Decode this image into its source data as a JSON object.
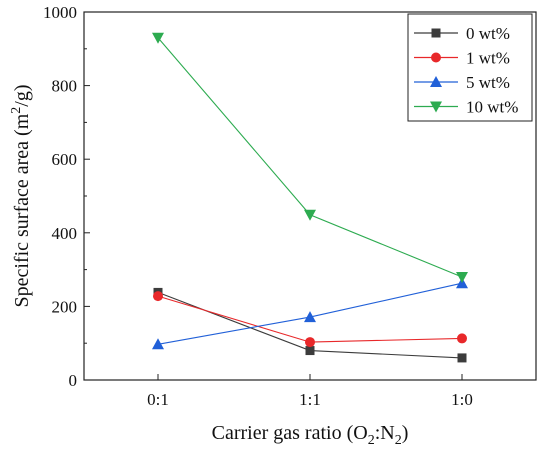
{
  "chart_data": {
    "type": "line",
    "title": "",
    "xlabel": "Carrier gas ratio (O",
    "xlabel_sub1": "2",
    "xlabel_sep": ":N",
    "xlabel_sub2": "2",
    "xlabel_end": ")",
    "ylabel": "Specific surface area (m",
    "ylabel_sup": "2",
    "ylabel_end": "/g)",
    "categories": [
      "0:1",
      "1:1",
      "1:0"
    ],
    "ylim": [
      0,
      1000
    ],
    "yticks": [
      0,
      200,
      400,
      600,
      800,
      1000
    ],
    "grid": false,
    "legend_position": "top-right",
    "series": [
      {
        "name": "0 wt%",
        "values": [
          238,
          80,
          60
        ],
        "color": "#3c3c3c",
        "marker": "square"
      },
      {
        "name": "1 wt%",
        "values": [
          228,
          103,
          113
        ],
        "color": "#e8282a",
        "marker": "circle"
      },
      {
        "name": "5 wt%",
        "values": [
          97,
          171,
          263
        ],
        "color": "#2160d8",
        "marker": "triangle-up"
      },
      {
        "name": "10 wt%",
        "values": [
          930,
          449,
          280
        ],
        "color": "#2dab50",
        "marker": "triangle-down"
      }
    ]
  }
}
